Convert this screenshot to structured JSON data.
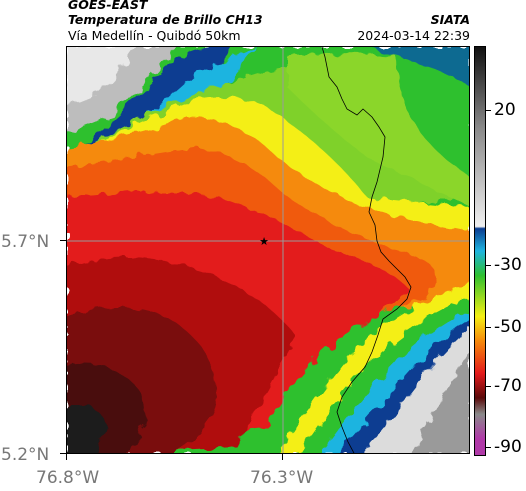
{
  "header": {
    "satellite": "GOES-EAST",
    "product": "Temperatura de Brillo CH13",
    "region": "Vía Medellín - Quibdó 50km",
    "agency": "SIATA",
    "datetime": "2024-03-14 22:39"
  },
  "map": {
    "lat_ticks": [
      {
        "label": "5.7°N",
        "value": 5.7
      },
      {
        "label": "5.2°N",
        "value": 5.2
      }
    ],
    "lon_ticks": [
      {
        "label": "76.8°W",
        "value": -76.8
      },
      {
        "label": "76.3°W",
        "value": -76.3
      }
    ],
    "marker_symbol": "★",
    "gridline_color": "#9a9a9a"
  },
  "colorbar": {
    "labels": [
      "20",
      "-30",
      "-50",
      "-70",
      "-90"
    ],
    "colors": {
      "top": "#111111",
      "upper": "#8a8a8a",
      "mid_light": "#f0f0f0",
      "blue": "#0b3d91",
      "cyan": "#1fb4e0",
      "green": "#2fc02f",
      "yellow": "#f4ef14",
      "orange": "#f58a0b",
      "red": "#e31a1c",
      "darkred": "#5a0a0a",
      "purple": "#b03aa8"
    }
  }
}
